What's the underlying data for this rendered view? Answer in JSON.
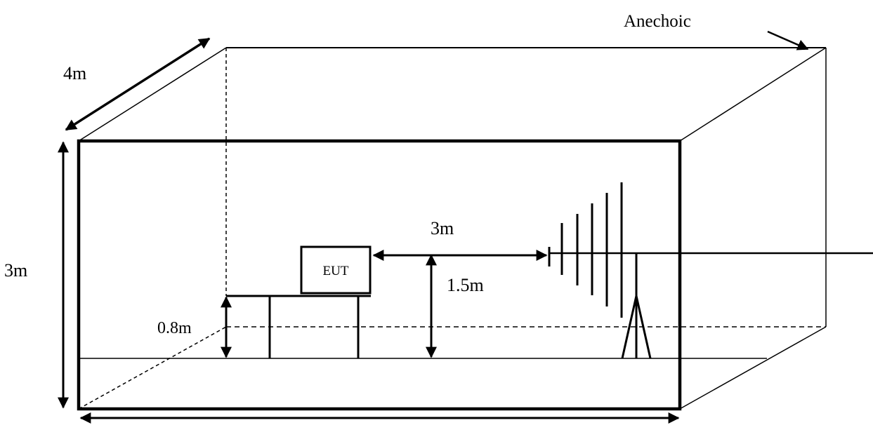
{
  "labels": {
    "anechoic": "Anechoic",
    "width_dim": "4m",
    "height_dim": "3m",
    "distance_dim": "3m",
    "antenna_height_dim": "1.5m",
    "table_height_dim": "0.8m",
    "eut": "EUT"
  },
  "colors": {
    "line": "#000000",
    "background": "#ffffff"
  }
}
